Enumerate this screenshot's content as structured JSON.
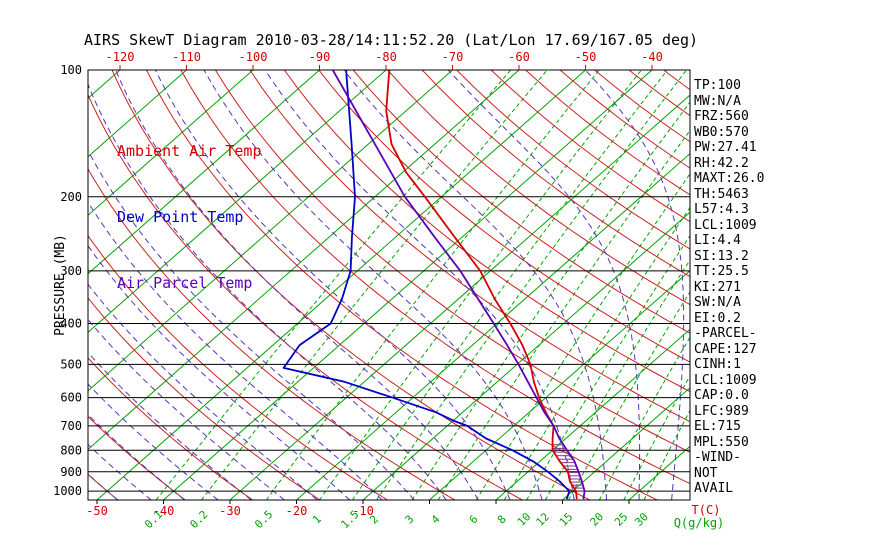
{
  "title": "AIRS SkewT Diagram 2010-03-28/14:11:52.20 (Lat/Lon 17.69/167.05 deg)",
  "legend": [
    {
      "label": "Ambient Air Temp",
      "color": "#d40000"
    },
    {
      "label": "Dew Point Temp",
      "color": "#0000c8"
    },
    {
      "label": "Air Parcel Temp",
      "color": "#5c00b8"
    }
  ],
  "stats_panel": [
    "TP:100",
    "MW:N/A",
    "FRZ:560",
    "WB0:570",
    "PW:27.41",
    "RH:42.2",
    "MAXT:26.0",
    "TH:5463",
    "L57:4.3",
    "LCL:1009",
    "LI:4.4",
    "SI:13.2",
    "TT:25.5",
    "KI:271",
    "SW:N/A",
    "EI:0.2",
    "-PARCEL-",
    "CAPE:127",
    "CINH:1",
    "LCL:1009",
    "CAP:0.0",
    "LFC:989",
    "EL:715",
    "MPL:550",
    "-WIND-",
    "NOT",
    "AVAIL"
  ],
  "chart_data": {
    "type": "line",
    "title": "AIRS SkewT Diagram 2010-03-28/14:11:52.20 (Lat/Lon 17.69/167.05 deg)",
    "ylabel": "PRESSURE (MB)",
    "xlabel": "T(C)",
    "y_axis": {
      "scale": "log",
      "unit": "mb",
      "range": [
        100,
        1050
      ],
      "ticks": [
        100,
        200,
        300,
        400,
        500,
        600,
        700,
        800,
        900,
        1000
      ]
    },
    "x_axis_temp": {
      "label": "T(C)",
      "unit": "C",
      "top_edge_ticks": [
        -120,
        -110,
        -100,
        -90,
        -80,
        -70,
        -60,
        -50,
        -40
      ],
      "bottom_edge_ticks": [
        -50,
        -40,
        -30,
        -20,
        -10
      ]
    },
    "mixing_ratio": {
      "label": "Q(g/kg)",
      "lines_g_per_kg": [
        0.1,
        0.2,
        0.5,
        1,
        1.5,
        2,
        3,
        4,
        6,
        8,
        10,
        12,
        15,
        20,
        25,
        30
      ]
    },
    "isotherms_c": {
      "min": -160,
      "max": 40,
      "step": 10
    },
    "dry_adiabats_c": {
      "min": -50,
      "max": 180,
      "step": 10
    },
    "moist_adiabats_c": {
      "min": -60,
      "max": 40,
      "step": 5
    },
    "series": [
      {
        "name": "Ambient Air Temp",
        "color": "#d40000",
        "points_p_t": [
          [
            1045,
            22
          ],
          [
            1000,
            20.5
          ],
          [
            950,
            18
          ],
          [
            900,
            16
          ],
          [
            850,
            13
          ],
          [
            800,
            10
          ],
          [
            750,
            8
          ],
          [
            700,
            6
          ],
          [
            650,
            2.5
          ],
          [
            600,
            -1
          ],
          [
            550,
            -4.5
          ],
          [
            500,
            -8
          ],
          [
            450,
            -12.5
          ],
          [
            400,
            -18
          ],
          [
            350,
            -24.5
          ],
          [
            300,
            -31.5
          ],
          [
            250,
            -41
          ],
          [
            200,
            -52.5
          ],
          [
            175,
            -59.5
          ],
          [
            150,
            -66.5
          ],
          [
            125,
            -73
          ],
          [
            100,
            -79.5
          ]
        ]
      },
      {
        "name": "Dew Point Temp",
        "color": "#0000c8",
        "points_p_t": [
          [
            1045,
            20.5
          ],
          [
            1000,
            19.5
          ],
          [
            950,
            16.5
          ],
          [
            900,
            13
          ],
          [
            850,
            9
          ],
          [
            800,
            4
          ],
          [
            750,
            -2
          ],
          [
            700,
            -7
          ],
          [
            680,
            -10
          ],
          [
            650,
            -14
          ],
          [
            600,
            -23
          ],
          [
            550,
            -33
          ],
          [
            510,
            -44.5
          ],
          [
            450,
            -46
          ],
          [
            400,
            -45
          ],
          [
            350,
            -47.5
          ],
          [
            300,
            -51
          ],
          [
            250,
            -56.5
          ],
          [
            200,
            -63
          ],
          [
            150,
            -72.5
          ],
          [
            100,
            -86
          ]
        ]
      },
      {
        "name": "Air Parcel Temp",
        "color": "#5c00b8",
        "points_p_t": [
          [
            1045,
            23
          ],
          [
            1000,
            21.8
          ],
          [
            950,
            19.8
          ],
          [
            900,
            17.6
          ],
          [
            850,
            15.2
          ],
          [
            800,
            12.2
          ],
          [
            750,
            9
          ],
          [
            700,
            6
          ],
          [
            650,
            2.3
          ],
          [
            600,
            -1.4
          ],
          [
            550,
            -5.4
          ],
          [
            500,
            -9.8
          ],
          [
            450,
            -14.8
          ],
          [
            400,
            -20.5
          ],
          [
            350,
            -27
          ],
          [
            300,
            -34.5
          ],
          [
            250,
            -44
          ],
          [
            200,
            -55.5
          ],
          [
            150,
            -69
          ],
          [
            100,
            -88
          ]
        ]
      }
    ],
    "cape_hatch": {
      "between": [
        "Ambient Air Temp",
        "Air Parcel Temp"
      ],
      "p_range": [
        1000,
        770
      ]
    },
    "colors": {
      "isobar": "#000000",
      "isotherm": "#00a400",
      "mixing_ratio": "#00a400",
      "dry_adiabat": "#cc2222",
      "moist_adiabat": "#5533bb",
      "hatch": "#883399",
      "temp_label": "#d40000",
      "mixing_label": "#00a400",
      "pressure_label": "#000000"
    }
  }
}
